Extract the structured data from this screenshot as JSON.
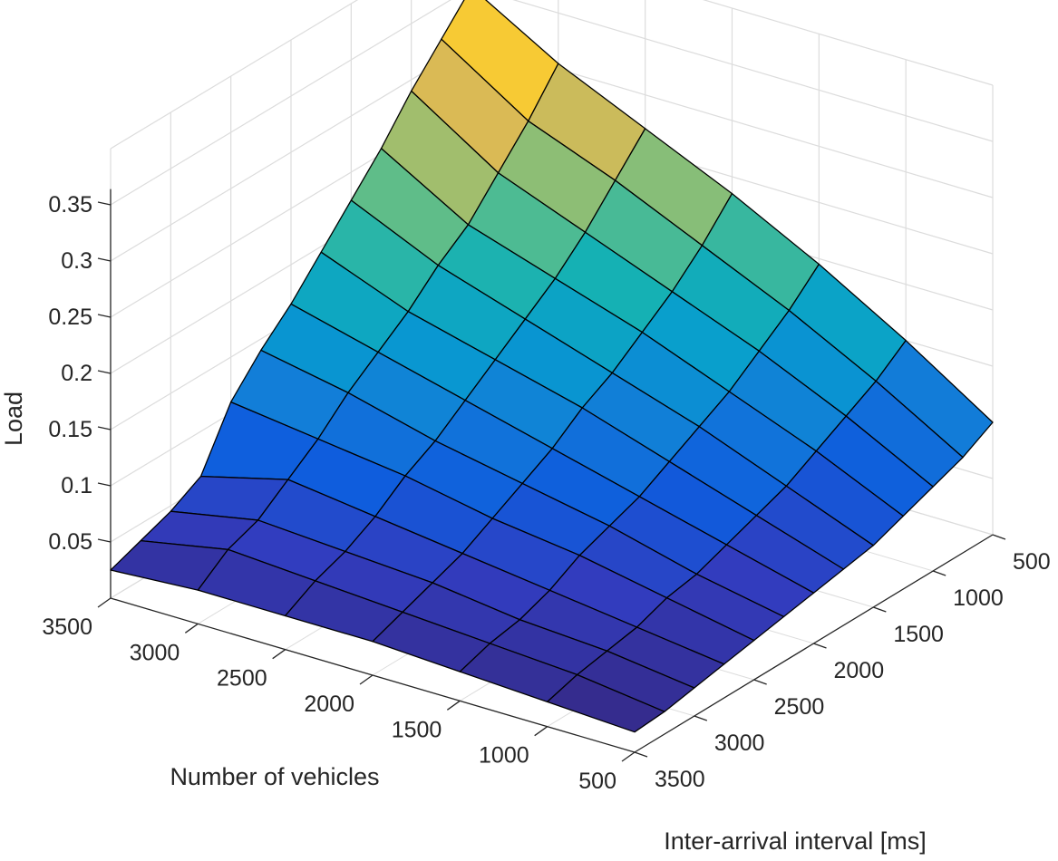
{
  "chart_data": {
    "type": "surface3d",
    "title": "",
    "xlabel": "Number of vehicles",
    "ylabel": "Inter-arrival interval [ms]",
    "zlabel": "Load",
    "x_ticks": [
      "500",
      "1000",
      "1500",
      "2000",
      "2500",
      "3000",
      "3500"
    ],
    "y_ticks": [
      "500",
      "1000",
      "1500",
      "2000",
      "2500",
      "3000",
      "3500"
    ],
    "z_ticks": [
      "0.05",
      "0.1",
      "0.15",
      "0.2",
      "0.25",
      "0.3",
      "0.35"
    ],
    "xlim": [
      500,
      3500
    ],
    "ylim": [
      500,
      3500
    ],
    "zlim": [
      0,
      0.4
    ],
    "grid": true,
    "colormap": "parula",
    "x": [
      500,
      1000,
      1500,
      2000,
      2500,
      3000,
      3500
    ],
    "y": [
      500,
      750,
      1000,
      1250,
      1500,
      1750,
      2000,
      2250,
      2500,
      2750,
      3000,
      3250,
      3500
    ],
    "z_description": "Load rows indexed by inter-arrival interval (y), columns by number of vehicles (x)",
    "z": [
      [
        0.1,
        0.15,
        0.195,
        0.235,
        0.27,
        0.305,
        0.35
      ],
      [
        0.085,
        0.13,
        0.17,
        0.205,
        0.24,
        0.27,
        0.32
      ],
      [
        0.075,
        0.115,
        0.15,
        0.18,
        0.21,
        0.24,
        0.29
      ],
      [
        0.065,
        0.1,
        0.13,
        0.16,
        0.185,
        0.21,
        0.255
      ],
      [
        0.055,
        0.085,
        0.115,
        0.14,
        0.165,
        0.19,
        0.225
      ],
      [
        0.05,
        0.075,
        0.1,
        0.125,
        0.145,
        0.165,
        0.195
      ],
      [
        0.045,
        0.065,
        0.085,
        0.105,
        0.125,
        0.145,
        0.165
      ],
      [
        0.04,
        0.055,
        0.075,
        0.09,
        0.105,
        0.125,
        0.14
      ],
      [
        0.035,
        0.05,
        0.065,
        0.075,
        0.09,
        0.1,
        0.11
      ],
      [
        0.03,
        0.04,
        0.05,
        0.06,
        0.07,
        0.08,
        0.06
      ],
      [
        0.025,
        0.035,
        0.04,
        0.05,
        0.055,
        0.06,
        0.045
      ],
      [
        0.02,
        0.03,
        0.035,
        0.04,
        0.045,
        0.05,
        0.035
      ],
      [
        0.018,
        0.022,
        0.026,
        0.03,
        0.03,
        0.03,
        0.025
      ]
    ],
    "annotations": []
  },
  "axes": {
    "z_label": "Load",
    "x_label": "Number of vehicles",
    "y_label": "Inter-arrival interval [ms]"
  },
  "colors": {
    "background": "#ffffff",
    "grid": "#dcdcdc",
    "axis": "#262626",
    "edge": "#000000",
    "colormap_low": "#352a87",
    "colormap_mid": "#0fafc4",
    "colormap_high": "#f9d52f"
  }
}
